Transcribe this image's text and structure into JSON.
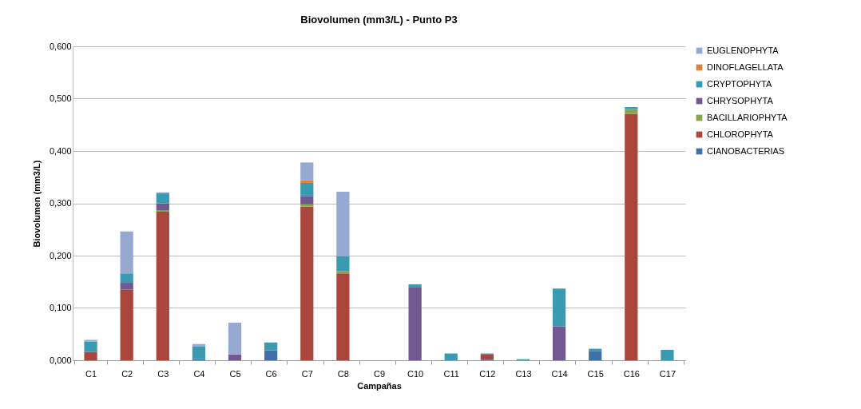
{
  "chart_data": {
    "type": "bar",
    "title": "Biovolumen (mm3/L) - Punto P3",
    "xlabel": "Campañas",
    "ylabel": "Biovolumen (mm3/L)",
    "stacked": true,
    "grid": "y",
    "legend": "right",
    "categories": [
      "C1",
      "C2",
      "C3",
      "C4",
      "C5",
      "C6",
      "C7",
      "C8",
      "C9",
      "C10",
      "C11",
      "C12",
      "C13",
      "C14",
      "C15",
      "C16",
      "C17"
    ],
    "ylim": [
      0,
      0.6
    ],
    "yticks": [
      {
        "value": 0,
        "label": "0,000"
      },
      {
        "value": 0.1,
        "label": "0,100"
      },
      {
        "value": 0.2,
        "label": "0,200"
      },
      {
        "value": 0.3,
        "label": "0,300"
      },
      {
        "value": 0.4,
        "label": "0,400"
      },
      {
        "value": 0.5,
        "label": "0,500"
      },
      {
        "value": 0.6,
        "label": "0,600"
      }
    ],
    "series": [
      {
        "name": "CIANOBACTERIAS",
        "color": "#4170a8",
        "values": [
          null,
          null,
          null,
          0.002,
          null,
          0.019,
          null,
          null,
          null,
          null,
          null,
          0.001,
          null,
          null,
          0.017,
          null,
          null
        ]
      },
      {
        "name": "CHLOROPHYTA",
        "color": "#aa463c",
        "values": [
          0.016,
          0.135,
          0.284,
          null,
          null,
          null,
          0.294,
          0.166,
          null,
          null,
          null,
          0.011,
          null,
          null,
          null,
          0.471,
          null
        ]
      },
      {
        "name": "BACILLARIOPHYTA",
        "color": "#89a54e",
        "values": [
          null,
          null,
          0.002,
          null,
          null,
          null,
          0.004,
          0.004,
          null,
          null,
          null,
          null,
          null,
          null,
          null,
          0.009,
          null
        ]
      },
      {
        "name": "CHRYSOPHYTA",
        "color": "#71588f",
        "values": [
          null,
          0.013,
          0.014,
          null,
          0.011,
          null,
          0.016,
          null,
          null,
          0.139,
          null,
          null,
          null,
          0.065,
          null,
          null,
          null
        ]
      },
      {
        "name": "CRYPTOPHYTA",
        "color": "#3a9ab2",
        "values": [
          0.02,
          0.018,
          0.019,
          0.024,
          null,
          0.015,
          0.025,
          0.029,
          null,
          0.006,
          0.013,
          0.001,
          0.002,
          0.072,
          0.005,
          0.004,
          0.02
        ]
      },
      {
        "name": "DINOFLAGELLATA",
        "color": "#db843d",
        "values": [
          null,
          null,
          null,
          null,
          null,
          null,
          0.005,
          null,
          null,
          null,
          null,
          null,
          null,
          null,
          null,
          null,
          null
        ]
      },
      {
        "name": "EUGLENOPHYTA",
        "color": "#96a9d0",
        "values": [
          0.003,
          0.08,
          0.002,
          0.005,
          0.061,
          null,
          0.034,
          0.123,
          null,
          null,
          null,
          null,
          null,
          null,
          null,
          null,
          null
        ]
      }
    ]
  }
}
